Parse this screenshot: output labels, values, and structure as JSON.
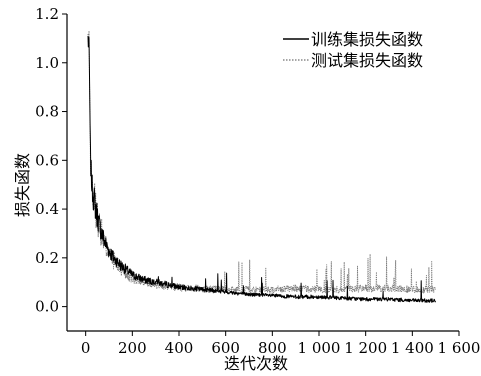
{
  "chart_data": {
    "type": "line",
    "title": "",
    "xlabel": "迭代次数",
    "ylabel": "损失函数",
    "xlim": [
      -80,
      1600
    ],
    "ylim": [
      -0.1,
      1.2
    ],
    "x_ticks": [
      0,
      200,
      400,
      600,
      800,
      1000,
      1200,
      1400,
      1600
    ],
    "x_tick_labels": [
      "0",
      "200",
      "400",
      "600",
      "800",
      "1 000",
      "1 200",
      "1 400",
      "1 600"
    ],
    "y_ticks": [
      0.0,
      0.2,
      0.4,
      0.6,
      0.8,
      1.0,
      1.2
    ],
    "y_tick_labels": [
      "0.0",
      "0.2",
      "0.4",
      "0.6",
      "0.8",
      "1.0",
      "1.2"
    ],
    "grid": false,
    "legend_position": "top-right",
    "series": [
      {
        "name": "训练集损失函数",
        "color": "#000000",
        "style": "solid",
        "x": [
          10,
          15,
          20,
          25,
          30,
          40,
          50,
          60,
          80,
          100,
          120,
          150,
          200,
          250,
          300,
          350,
          400,
          500,
          600,
          700,
          800,
          900,
          1000,
          1100,
          1200,
          1300,
          1400,
          1500
        ],
        "y": [
          1.1,
          1.05,
          0.62,
          0.52,
          0.47,
          0.42,
          0.37,
          0.33,
          0.27,
          0.23,
          0.2,
          0.17,
          0.13,
          0.11,
          0.1,
          0.09,
          0.08,
          0.07,
          0.06,
          0.05,
          0.045,
          0.04,
          0.04,
          0.035,
          0.03,
          0.03,
          0.025,
          0.025
        ]
      },
      {
        "name": "测试集损失函数",
        "color": "#777777",
        "style": "dotted",
        "x": [
          10,
          15,
          20,
          25,
          30,
          40,
          50,
          60,
          80,
          100,
          120,
          150,
          200,
          250,
          300,
          350,
          400,
          500,
          600,
          700,
          800,
          900,
          1000,
          1100,
          1200,
          1300,
          1400,
          1500
        ],
        "y": [
          1.1,
          1.08,
          0.6,
          0.53,
          0.48,
          0.42,
          0.37,
          0.33,
          0.26,
          0.22,
          0.19,
          0.15,
          0.12,
          0.1,
          0.09,
          0.085,
          0.08,
          0.075,
          0.07,
          0.07,
          0.07,
          0.075,
          0.07,
          0.07,
          0.075,
          0.075,
          0.07,
          0.07
        ]
      }
    ]
  }
}
